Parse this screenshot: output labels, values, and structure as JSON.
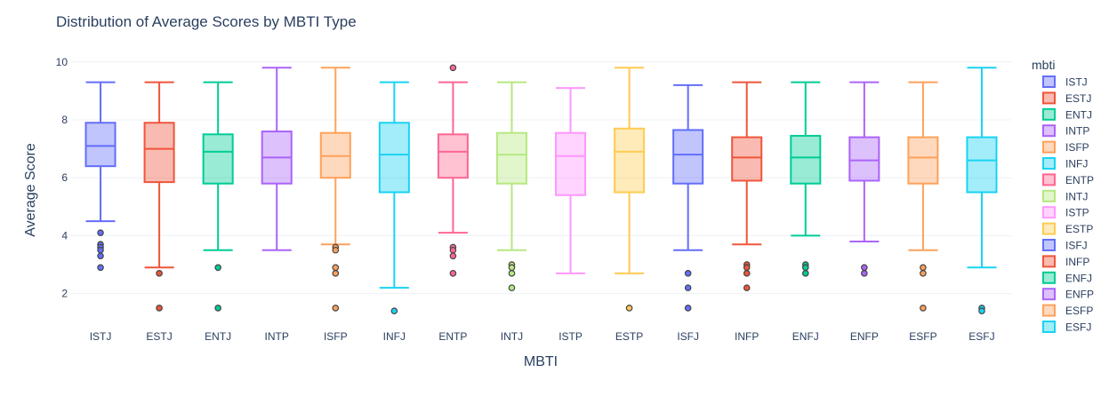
{
  "chart_data": {
    "type": "box",
    "title": "Distribution of Average Scores by MBTI Type",
    "xlabel": "MBTI",
    "ylabel": "Average Score",
    "ylim": [
      1.1,
      10.3
    ],
    "yticks": [
      2,
      4,
      6,
      8,
      10
    ],
    "grid": true,
    "legend": {
      "title": "mbti",
      "placement": "right"
    },
    "categories": [
      "ISTJ",
      "ESTJ",
      "ENTJ",
      "INTP",
      "ISFP",
      "INFJ",
      "ENTP",
      "INTJ",
      "ISTP",
      "ESTP",
      "ISFJ",
      "INFP",
      "ENFJ",
      "ENFP",
      "ESFP",
      "ESFJ"
    ],
    "series": [
      {
        "name": "ISTJ",
        "color": "#636efa",
        "min": 4.5,
        "q1": 6.4,
        "median": 7.1,
        "q3": 7.9,
        "max": 9.3,
        "outliers": [
          4.1,
          3.7,
          3.6,
          3.5,
          3.3,
          2.9
        ]
      },
      {
        "name": "ESTJ",
        "color": "#ef553b",
        "min": 2.9,
        "q1": 5.85,
        "median": 7.0,
        "q3": 7.9,
        "max": 9.3,
        "outliers": [
          2.7,
          1.5
        ]
      },
      {
        "name": "ENTJ",
        "color": "#00cc96",
        "min": 3.5,
        "q1": 5.8,
        "median": 6.9,
        "q3": 7.5,
        "max": 9.3,
        "outliers": [
          2.9,
          1.5
        ]
      },
      {
        "name": "INTP",
        "color": "#ab63fa",
        "min": 3.5,
        "q1": 5.8,
        "median": 6.7,
        "q3": 7.6,
        "max": 9.8,
        "outliers": []
      },
      {
        "name": "ISFP",
        "color": "#ffa15a",
        "min": 3.7,
        "q1": 6.0,
        "median": 6.75,
        "q3": 7.55,
        "max": 9.8,
        "outliers": [
          3.6,
          3.5,
          2.9,
          2.7,
          1.5
        ]
      },
      {
        "name": "INFJ",
        "color": "#19d3f3",
        "min": 2.2,
        "q1": 5.5,
        "median": 6.8,
        "q3": 7.9,
        "max": 9.3,
        "outliers": [
          1.4
        ]
      },
      {
        "name": "ENTP",
        "color": "#ff6692",
        "min": 4.1,
        "q1": 6.0,
        "median": 6.9,
        "q3": 7.5,
        "max": 9.3,
        "outliers": [
          9.8,
          3.6,
          3.5,
          3.3,
          2.7
        ]
      },
      {
        "name": "INTJ",
        "color": "#b6e880",
        "min": 3.5,
        "q1": 5.8,
        "median": 6.8,
        "q3": 7.55,
        "max": 9.3,
        "outliers": [
          3.0,
          2.9,
          2.7,
          2.2
        ]
      },
      {
        "name": "ISTP",
        "color": "#ff97ff",
        "min": 2.7,
        "q1": 5.4,
        "median": 6.75,
        "q3": 7.55,
        "max": 9.1,
        "outliers": []
      },
      {
        "name": "ESTP",
        "color": "#fecb52",
        "min": 2.7,
        "q1": 5.5,
        "median": 6.9,
        "q3": 7.7,
        "max": 9.8,
        "outliers": [
          1.5
        ]
      },
      {
        "name": "ISFJ",
        "color": "#636efa",
        "min": 3.5,
        "q1": 5.8,
        "median": 6.8,
        "q3": 7.65,
        "max": 9.2,
        "outliers": [
          2.7,
          2.2,
          1.5
        ]
      },
      {
        "name": "INFP",
        "color": "#ef553b",
        "min": 3.7,
        "q1": 5.9,
        "median": 6.7,
        "q3": 7.4,
        "max": 9.3,
        "outliers": [
          3.0,
          2.9,
          2.7,
          2.2
        ]
      },
      {
        "name": "ENFJ",
        "color": "#00cc96",
        "min": 4.0,
        "q1": 5.8,
        "median": 6.7,
        "q3": 7.45,
        "max": 9.3,
        "outliers": [
          3.0,
          2.9,
          2.7
        ]
      },
      {
        "name": "ENFP",
        "color": "#ab63fa",
        "min": 3.8,
        "q1": 5.9,
        "median": 6.6,
        "q3": 7.4,
        "max": 9.3,
        "outliers": [
          2.9,
          2.7
        ]
      },
      {
        "name": "ESFP",
        "color": "#ffa15a",
        "min": 3.5,
        "q1": 5.8,
        "median": 6.7,
        "q3": 7.4,
        "max": 9.3,
        "outliers": [
          2.9,
          2.7,
          1.5
        ]
      },
      {
        "name": "ESFJ",
        "color": "#19d3f3",
        "min": 2.9,
        "q1": 5.5,
        "median": 6.6,
        "q3": 7.4,
        "max": 9.8,
        "outliers": [
          1.5,
          1.4
        ]
      }
    ]
  }
}
